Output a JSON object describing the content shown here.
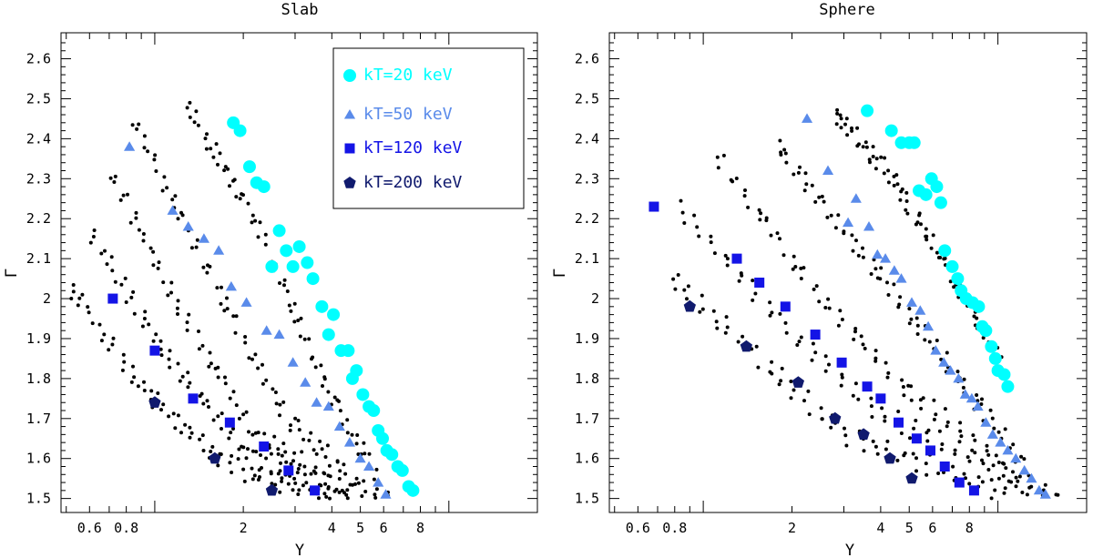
{
  "chart_data": [
    {
      "type": "scatter",
      "title": "Slab",
      "xlabel": "Y",
      "ylabel": "Γ",
      "xscale": "log",
      "xlim": [
        0.48,
        20
      ],
      "ylim": [
        1.465,
        2.665
      ],
      "xticks": [
        {
          "v": 0.6,
          "label": "0.6"
        },
        {
          "v": 0.8,
          "label": "0.8"
        },
        {
          "v": 2,
          "label": "2"
        },
        {
          "v": 4,
          "label": "4"
        },
        {
          "v": 5,
          "label": "5"
        },
        {
          "v": 6,
          "label": "6"
        },
        {
          "v": 8,
          "label": "8"
        }
      ],
      "yticks": [
        {
          "v": 1.5,
          "label": "1.5"
        },
        {
          "v": 1.6,
          "label": "1.6"
        },
        {
          "v": 1.7,
          "label": "1.7"
        },
        {
          "v": 1.8,
          "label": "1.8"
        },
        {
          "v": 1.9,
          "label": "1.9"
        },
        {
          "v": 2.0,
          "label": "2"
        },
        {
          "v": 2.1,
          "label": "2.1"
        },
        {
          "v": 2.2,
          "label": "2.2"
        },
        {
          "v": 2.3,
          "label": "2.3"
        },
        {
          "v": 2.4,
          "label": "2.4"
        },
        {
          "v": 2.5,
          "label": "2.5"
        },
        {
          "v": 2.6,
          "label": "2.6"
        }
      ],
      "legend": {
        "position": "top-right",
        "entries": [
          {
            "label": "kT=20 keV",
            "marker": "circle",
            "color": "#00ffff"
          },
          {
            "label": "kT=50 keV",
            "marker": "triangle",
            "color": "#5a8bea"
          },
          {
            "label": "kT=120 keV",
            "marker": "square",
            "color": "#1414e6"
          },
          {
            "label": "kT=200 keV",
            "marker": "pentagon",
            "color": "#101a6e"
          }
        ]
      },
      "series": [
        {
          "name": "kT=20 keV",
          "marker": "circle",
          "color": "#00ffff",
          "points": [
            [
              1.85,
              2.44
            ],
            [
              1.95,
              2.42
            ],
            [
              2.1,
              2.33
            ],
            [
              2.22,
              2.29
            ],
            [
              2.35,
              2.28
            ],
            [
              2.65,
              2.17
            ],
            [
              2.5,
              2.08
            ],
            [
              2.8,
              2.12
            ],
            [
              3.1,
              2.13
            ],
            [
              2.95,
              2.08
            ],
            [
              3.3,
              2.09
            ],
            [
              3.45,
              2.05
            ],
            [
              3.7,
              1.98
            ],
            [
              4.05,
              1.96
            ],
            [
              3.9,
              1.91
            ],
            [
              4.3,
              1.87
            ],
            [
              4.55,
              1.87
            ],
            [
              4.7,
              1.8
            ],
            [
              4.85,
              1.82
            ],
            [
              5.1,
              1.76
            ],
            [
              5.35,
              1.73
            ],
            [
              5.55,
              1.72
            ],
            [
              5.75,
              1.67
            ],
            [
              5.95,
              1.65
            ],
            [
              6.15,
              1.62
            ],
            [
              6.4,
              1.61
            ],
            [
              6.7,
              1.58
            ],
            [
              6.95,
              1.57
            ],
            [
              7.3,
              1.53
            ],
            [
              7.55,
              1.52
            ]
          ]
        },
        {
          "name": "kT=50 keV",
          "marker": "triangle",
          "color": "#5a8bea",
          "points": [
            [
              0.82,
              2.38
            ],
            [
              1.15,
              2.22
            ],
            [
              1.3,
              2.18
            ],
            [
              1.47,
              2.15
            ],
            [
              1.65,
              2.12
            ],
            [
              1.82,
              2.03
            ],
            [
              2.05,
              1.99
            ],
            [
              2.4,
              1.92
            ],
            [
              2.65,
              1.91
            ],
            [
              2.95,
              1.84
            ],
            [
              3.25,
              1.79
            ],
            [
              3.55,
              1.74
            ],
            [
              3.9,
              1.73
            ],
            [
              4.25,
              1.68
            ],
            [
              4.6,
              1.64
            ],
            [
              5.0,
              1.6
            ],
            [
              5.35,
              1.58
            ],
            [
              5.75,
              1.54
            ],
            [
              6.1,
              1.51
            ]
          ]
        },
        {
          "name": "kT=120 keV",
          "marker": "square",
          "color": "#1414e6",
          "points": [
            [
              0.72,
              2.0
            ],
            [
              1.0,
              1.87
            ],
            [
              1.35,
              1.75
            ],
            [
              1.8,
              1.69
            ],
            [
              2.35,
              1.63
            ],
            [
              2.85,
              1.57
            ],
            [
              3.5,
              1.52
            ]
          ]
        },
        {
          "name": "kT=200 keV",
          "marker": "pentagon",
          "color": "#101a6e",
          "points": [
            [
              1.0,
              1.74
            ],
            [
              1.6,
              1.6
            ],
            [
              2.5,
              1.52
            ]
          ]
        }
      ],
      "background": [
        {
          "y0": 2.47,
          "x": [
            1.32,
            2.22,
            3.5,
            6.2
          ],
          "y": [
            2.47,
            2.19,
            1.84,
            1.5
          ]
        },
        {
          "y0": 2.42,
          "x": [
            0.86,
            1.6,
            2.8,
            5.6
          ],
          "y": [
            2.43,
            2.04,
            1.7,
            1.5
          ]
        },
        {
          "y0": 2.3,
          "x": [
            0.73,
            1.2,
            2.2,
            5.0
          ],
          "y": [
            2.3,
            1.98,
            1.66,
            1.5
          ]
        },
        {
          "y0": 2.15,
          "x": [
            0.62,
            1.05,
            2.0,
            4.5
          ],
          "y": [
            2.15,
            1.88,
            1.62,
            1.5
          ]
        },
        {
          "y0": 2.02,
          "x": [
            0.52,
            0.95,
            1.8,
            4.0
          ],
          "y": [
            2.02,
            1.76,
            1.58,
            1.5
          ]
        }
      ]
    },
    {
      "type": "scatter",
      "title": "Sphere",
      "xlabel": "Y",
      "ylabel": "Γ",
      "xscale": "log",
      "xlim": [
        0.48,
        20
      ],
      "ylim": [
        1.465,
        2.665
      ],
      "xticks": [
        {
          "v": 0.6,
          "label": "0.6"
        },
        {
          "v": 0.8,
          "label": "0.8"
        },
        {
          "v": 2,
          "label": "2"
        },
        {
          "v": 4,
          "label": "4"
        },
        {
          "v": 5,
          "label": "5"
        },
        {
          "v": 6,
          "label": "6"
        },
        {
          "v": 8,
          "label": "8"
        }
      ],
      "yticks": [
        {
          "v": 1.5,
          "label": "1.5"
        },
        {
          "v": 1.6,
          "label": "1.6"
        },
        {
          "v": 1.7,
          "label": "1.7"
        },
        {
          "v": 1.8,
          "label": "1.8"
        },
        {
          "v": 1.9,
          "label": "1.9"
        },
        {
          "v": 2.0,
          "label": "2"
        },
        {
          "v": 2.1,
          "label": "2.1"
        },
        {
          "v": 2.2,
          "label": "2.2"
        },
        {
          "v": 2.3,
          "label": "2.3"
        },
        {
          "v": 2.4,
          "label": "2.4"
        },
        {
          "v": 2.5,
          "label": "2.5"
        },
        {
          "v": 2.6,
          "label": "2.6"
        }
      ],
      "series": [
        {
          "name": "kT=20 keV",
          "marker": "circle",
          "color": "#00ffff",
          "points": [
            [
              3.6,
              2.47
            ],
            [
              4.35,
              2.42
            ],
            [
              4.7,
              2.39
            ],
            [
              5.0,
              2.39
            ],
            [
              5.2,
              2.39
            ],
            [
              5.4,
              2.27
            ],
            [
              5.7,
              2.26
            ],
            [
              5.95,
              2.3
            ],
            [
              6.2,
              2.28
            ],
            [
              6.4,
              2.24
            ],
            [
              6.6,
              2.12
            ],
            [
              7.0,
              2.08
            ],
            [
              7.3,
              2.05
            ],
            [
              7.5,
              2.02
            ],
            [
              7.8,
              2.0
            ],
            [
              8.2,
              1.99
            ],
            [
              8.6,
              1.98
            ],
            [
              8.85,
              1.93
            ],
            [
              9.1,
              1.92
            ],
            [
              9.5,
              1.88
            ],
            [
              9.8,
              1.85
            ],
            [
              10.0,
              1.82
            ],
            [
              10.5,
              1.81
            ],
            [
              10.8,
              1.78
            ]
          ]
        },
        {
          "name": "kT=50 keV",
          "marker": "triangle",
          "color": "#5a8bea",
          "points": [
            [
              2.25,
              2.45
            ],
            [
              2.65,
              2.32
            ],
            [
              3.1,
              2.19
            ],
            [
              3.3,
              2.25
            ],
            [
              3.65,
              2.18
            ],
            [
              3.9,
              2.11
            ],
            [
              4.15,
              2.1
            ],
            [
              4.45,
              2.07
            ],
            [
              4.7,
              2.05
            ],
            [
              5.1,
              1.99
            ],
            [
              5.45,
              1.97
            ],
            [
              5.8,
              1.93
            ],
            [
              6.15,
              1.87
            ],
            [
              6.55,
              1.84
            ],
            [
              6.9,
              1.82
            ],
            [
              7.35,
              1.8
            ],
            [
              7.75,
              1.76
            ],
            [
              8.15,
              1.75
            ],
            [
              8.55,
              1.73
            ],
            [
              9.1,
              1.69
            ],
            [
              9.6,
              1.66
            ],
            [
              10.2,
              1.64
            ],
            [
              10.8,
              1.62
            ],
            [
              11.5,
              1.6
            ],
            [
              12.3,
              1.57
            ],
            [
              13.0,
              1.55
            ],
            [
              13.8,
              1.52
            ],
            [
              14.5,
              1.51
            ]
          ]
        },
        {
          "name": "kT=120 keV",
          "marker": "square",
          "color": "#1414e6",
          "points": [
            [
              0.68,
              2.23
            ],
            [
              1.3,
              2.1
            ],
            [
              1.55,
              2.04
            ],
            [
              1.9,
              1.98
            ],
            [
              2.4,
              1.91
            ],
            [
              2.95,
              1.84
            ],
            [
              3.6,
              1.78
            ],
            [
              4.0,
              1.75
            ],
            [
              4.6,
              1.69
            ],
            [
              5.3,
              1.65
            ],
            [
              5.9,
              1.62
            ],
            [
              6.6,
              1.58
            ],
            [
              7.4,
              1.54
            ],
            [
              8.3,
              1.52
            ]
          ]
        },
        {
          "name": "kT=200 keV",
          "marker": "pentagon",
          "color": "#101a6e",
          "points": [
            [
              0.9,
              1.98
            ],
            [
              1.4,
              1.88
            ],
            [
              2.1,
              1.79
            ],
            [
              2.8,
              1.7
            ],
            [
              3.5,
              1.66
            ],
            [
              4.3,
              1.6
            ],
            [
              5.1,
              1.55
            ]
          ]
        }
      ],
      "background": [
        {
          "y0": 2.46,
          "x": [
            2.8,
            4.2,
            6.0,
            10.0
          ],
          "y": [
            2.46,
            2.32,
            2.14,
            1.86
          ]
        },
        {
          "y0": 2.4,
          "x": [
            1.8,
            3.2,
            5.5,
            12.0
          ],
          "y": [
            2.38,
            2.15,
            1.92,
            1.6
          ]
        },
        {
          "y0": 2.35,
          "x": [
            1.15,
            2.4,
            4.5,
            13.0
          ],
          "y": [
            2.34,
            2.02,
            1.8,
            1.52
          ]
        },
        {
          "y0": 2.22,
          "x": [
            0.85,
            1.8,
            3.8,
            16.0
          ],
          "y": [
            2.22,
            1.95,
            1.72,
            1.5
          ]
        },
        {
          "y0": 2.05,
          "x": [
            0.8,
            1.5,
            3.0,
            12.0
          ],
          "y": [
            2.05,
            1.86,
            1.66,
            1.5
          ]
        }
      ]
    }
  ]
}
